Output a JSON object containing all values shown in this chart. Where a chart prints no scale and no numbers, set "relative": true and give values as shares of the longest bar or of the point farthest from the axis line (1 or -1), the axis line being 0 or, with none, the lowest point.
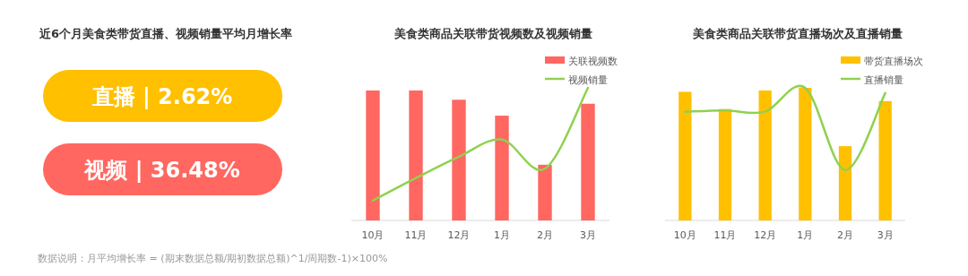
{
  "chart_data": [
    {
      "type": "other",
      "title": "近6个月美食类带货直播、视频销量平均月增长率",
      "categories": [
        "直播 | 2.62%",
        "视频 | 36.48%"
      ],
      "colors": [
        "#ffc000",
        "#ff6760"
      ],
      "annotations": [
        "数据说明：月平均增长率 = (期末数据总额/期初数据总额)^1/周期数-1)×100%"
      ]
    },
    {
      "type": "bar",
      "title": "美食类商品关联带货视频数及视频销量",
      "categories": [
        "10月",
        "11月",
        "12月",
        "1月",
        "2月",
        "3月"
      ],
      "relative": true,
      "legend": "top right",
      "series": [
        {
          "name": "关联视频数",
          "color": "#ff6760",
          "values": [
            0.98,
            0.98,
            0.91,
            0.79,
            0.42,
            0.88
          ]
        },
        {
          "name": "视频销量",
          "type": "line",
          "color": "#8fd14f",
          "values": [
            0.15,
            0.32,
            0.48,
            0.61,
            0.39,
            1
          ]
        }
      ]
    },
    {
      "type": "bar",
      "title": "美食类商品关联带货直播场次及直播销量",
      "categories": [
        "10月",
        "11月",
        "12月",
        "1月",
        "2月",
        "3月"
      ],
      "relative": true,
      "legend": "top right",
      "series": [
        {
          "name": "带货直播场次",
          "color": "#ffc000",
          "values": [
            0.97,
            0.84,
            0.98,
            1,
            0.56,
            0.9
          ]
        },
        {
          "name": "直播销量",
          "type": "line",
          "color": "#8fd14f",
          "values": [
            0.82,
            0.83,
            0.82,
            1,
            0.38,
            0.96
          ]
        }
      ]
    }
  ]
}
